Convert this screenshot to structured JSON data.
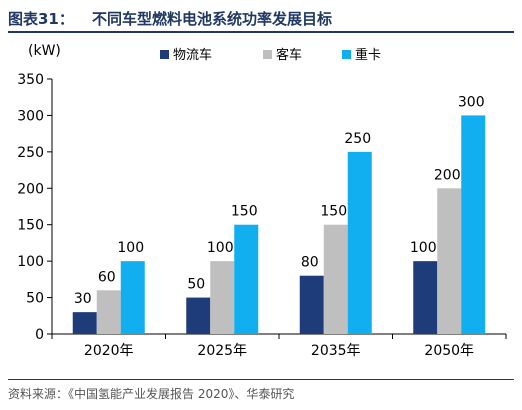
{
  "header": {
    "figure_number": "图表31：",
    "figure_title": "不同车型燃料电池系统功率发展目标"
  },
  "source": "资料来源：《中国氢能产业发展报告 2020》、华泰研究",
  "chart_data": {
    "type": "bar",
    "unit_label": "(kW)",
    "categories": [
      "2020年",
      "2025年",
      "2035年",
      "2050年"
    ],
    "series": [
      {
        "name": "物流车",
        "color": "#1f3c7a",
        "values": [
          30,
          50,
          80,
          100
        ]
      },
      {
        "name": "客车",
        "color": "#bfbfbf",
        "values": [
          60,
          100,
          150,
          200
        ]
      },
      {
        "name": "重卡",
        "color": "#11aef0",
        "values": [
          100,
          150,
          250,
          300
        ]
      }
    ],
    "ylim": [
      0,
      350
    ],
    "yticks": [
      0,
      50,
      100,
      150,
      200,
      250,
      300,
      350
    ],
    "legend_position": "top",
    "grid": false
  }
}
